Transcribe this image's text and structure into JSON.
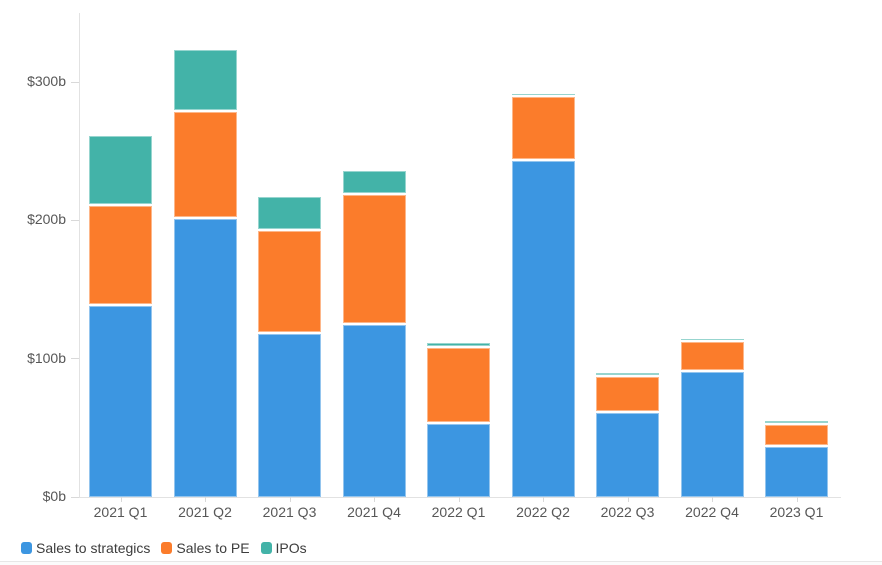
{
  "chart_data": {
    "type": "bar",
    "stacked": true,
    "title": "",
    "xlabel": "",
    "ylabel": "",
    "unit": "billions USD",
    "categories": [
      "2021 Q1",
      "2021 Q2",
      "2021 Q3",
      "2021 Q4",
      "2022 Q1",
      "2022 Q2",
      "2022 Q3",
      "2022 Q4",
      "2023 Q1"
    ],
    "series": [
      {
        "name": "Sales to strategics",
        "color": "#3c96e1",
        "values": [
          138,
          201,
          118,
          124,
          53,
          243,
          61,
          90,
          36
        ]
      },
      {
        "name": "Sales to PE",
        "color": "#fb7c2b",
        "values": [
          72,
          77,
          74,
          94,
          55,
          46,
          26,
          22,
          16
        ]
      },
      {
        "name": "IPOs",
        "color": "#43b3a8",
        "values": [
          51,
          45,
          25,
          18,
          3,
          2,
          3,
          2,
          3
        ]
      }
    ],
    "totals": [
      261,
      323,
      217,
      236,
      111,
      291,
      90,
      114,
      55
    ],
    "y_ticks": [
      {
        "value": 0,
        "label": "$0b"
      },
      {
        "value": 100,
        "label": "$100b"
      },
      {
        "value": 200,
        "label": "$200b"
      },
      {
        "value": 300,
        "label": "$300b"
      }
    ],
    "ylim": [
      0,
      349
    ],
    "grid": false,
    "legend_position": "bottom-left",
    "legend": [
      "Sales to strategics",
      "Sales to PE",
      "IPOs"
    ]
  },
  "colors": {
    "axis_line": "#e2e2e2",
    "tick": "#d9d9d9",
    "axis_label_text": "#575757",
    "legend_text": "#3d3d3d",
    "background": "#ffffff",
    "divider": "#e7e7e7"
  }
}
